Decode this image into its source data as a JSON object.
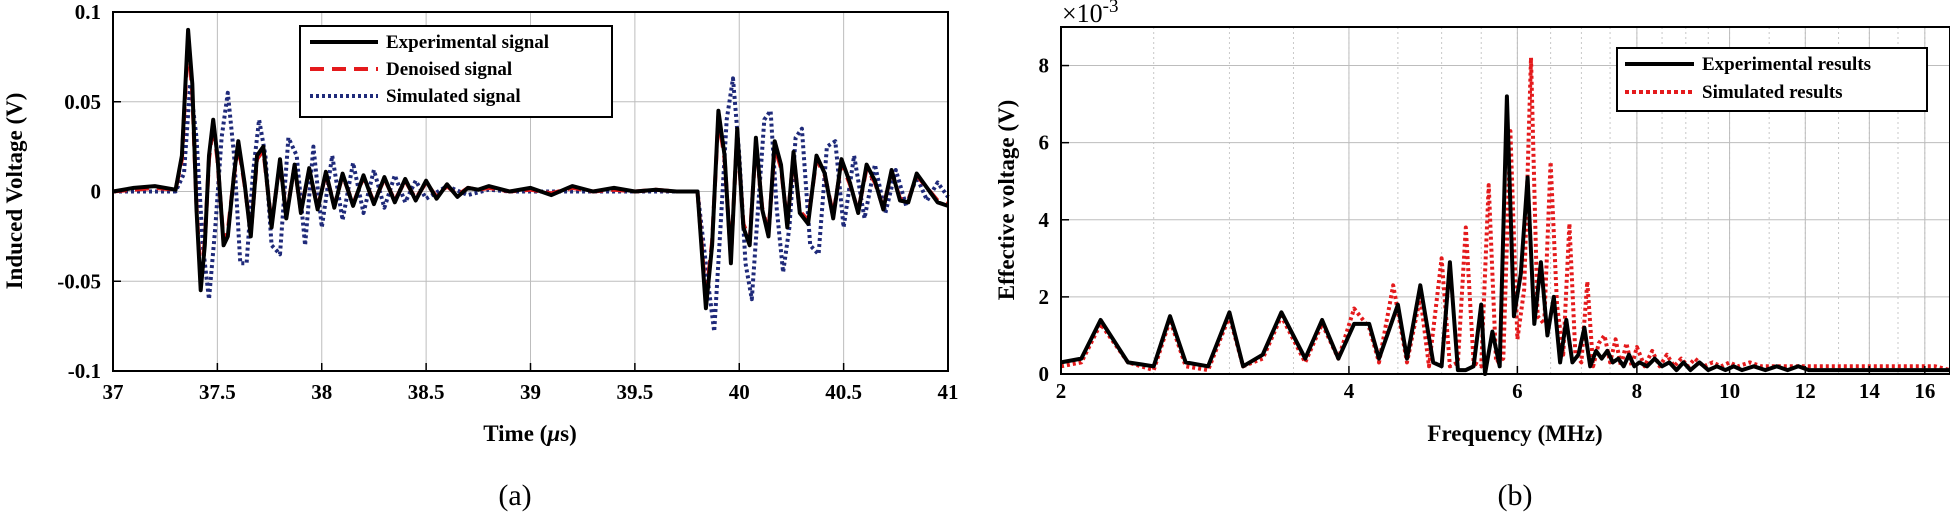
{
  "chart_data": [
    {
      "type": "line",
      "caption": "(a)",
      "xlabel_text": "Time (",
      "xlabel_mu": "μ",
      "xlabel_tail": "s)",
      "ylabel": "Induced Voltage (V)",
      "xlim": [
        37,
        41
      ],
      "ylim": [
        -0.1,
        0.1
      ],
      "xticks": [
        37,
        37.5,
        38,
        38.5,
        39,
        39.5,
        40,
        40.5,
        41
      ],
      "xtick_labels": [
        "37",
        "37.5",
        "38",
        "38.5",
        "39",
        "39.5",
        "40",
        "40.5",
        "41"
      ],
      "yticks": [
        -0.1,
        -0.05,
        0,
        0.05,
        0.1
      ],
      "ytick_labels": [
        "-0.1",
        "-0.05",
        "0",
        "0.05",
        "0.1"
      ],
      "grid": true,
      "legend_position": "top-right",
      "series": [
        {
          "name": "Experimental signal",
          "color": "#000000",
          "style": "solid",
          "x": [
            37.0,
            37.1,
            37.2,
            37.3,
            37.33,
            37.36,
            37.38,
            37.4,
            37.42,
            37.44,
            37.46,
            37.48,
            37.5,
            37.53,
            37.55,
            37.58,
            37.6,
            37.63,
            37.66,
            37.69,
            37.72,
            37.76,
            37.8,
            37.83,
            37.87,
            37.9,
            37.94,
            37.98,
            38.02,
            38.06,
            38.1,
            38.15,
            38.2,
            38.25,
            38.3,
            38.35,
            38.4,
            38.45,
            38.5,
            38.55,
            38.6,
            38.65,
            38.7,
            38.75,
            38.8,
            38.9,
            39.0,
            39.1,
            39.2,
            39.3,
            39.4,
            39.5,
            39.6,
            39.7,
            39.8,
            39.84,
            39.87,
            39.9,
            39.93,
            39.96,
            39.99,
            40.02,
            40.05,
            40.08,
            40.11,
            40.14,
            40.17,
            40.2,
            40.23,
            40.26,
            40.29,
            40.33,
            40.37,
            40.41,
            40.45,
            40.49,
            40.53,
            40.57,
            40.61,
            40.65,
            40.69,
            40.73,
            40.77,
            40.81,
            40.85,
            40.9,
            40.95,
            41.0
          ],
          "y": [
            0,
            0.002,
            0.003,
            0.001,
            0.02,
            0.09,
            0.06,
            -0.01,
            -0.055,
            -0.03,
            0.02,
            0.04,
            0.02,
            -0.03,
            -0.025,
            0.01,
            0.028,
            0.005,
            -0.025,
            0.02,
            0.025,
            -0.02,
            0.018,
            -0.015,
            0.015,
            -0.012,
            0.013,
            -0.01,
            0.011,
            -0.009,
            0.01,
            -0.008,
            0.009,
            -0.007,
            0.008,
            -0.006,
            0.007,
            -0.005,
            0.006,
            -0.004,
            0.004,
            -0.003,
            0.002,
            0.001,
            0.003,
            0,
            0.002,
            -0.002,
            0.003,
            0,
            0.002,
            0,
            0.001,
            0,
            0,
            -0.065,
            -0.03,
            0.045,
            0.02,
            -0.04,
            0.035,
            -0.02,
            -0.03,
            0.03,
            -0.01,
            -0.025,
            0.028,
            0.015,
            -0.02,
            0.022,
            -0.012,
            -0.018,
            0.02,
            0.01,
            -0.015,
            0.018,
            0.005,
            -0.012,
            0.015,
            0.006,
            -0.01,
            0.012,
            -0.005,
            -0.006,
            0.01,
            0.002,
            -0.006,
            -0.008
          ]
        },
        {
          "name": "Denoised signal",
          "color": "#e41a1c",
          "style": "dashed",
          "x": [
            37.0,
            37.1,
            37.2,
            37.3,
            37.33,
            37.36,
            37.38,
            37.4,
            37.42,
            37.44,
            37.46,
            37.48,
            37.5,
            37.53,
            37.55,
            37.58,
            37.6,
            37.63,
            37.66,
            37.69,
            37.72,
            37.76,
            37.8,
            37.83,
            37.87,
            37.9,
            37.94,
            37.98,
            38.02,
            38.06,
            38.1,
            38.15,
            38.2,
            38.25,
            38.3,
            38.35,
            38.4,
            38.45,
            38.5,
            38.55,
            38.6,
            38.65,
            38.7,
            38.75,
            38.8,
            38.9,
            39.0,
            39.1,
            39.2,
            39.3,
            39.4,
            39.5,
            39.6,
            39.7,
            39.8,
            39.84,
            39.87,
            39.9,
            39.93,
            39.96,
            39.99,
            40.02,
            40.05,
            40.08,
            40.11,
            40.14,
            40.17,
            40.2,
            40.23,
            40.26,
            40.29,
            40.33,
            40.37,
            40.41,
            40.45,
            40.49,
            40.53,
            40.57,
            40.61,
            40.65,
            40.69,
            40.73,
            40.77,
            40.81,
            40.85,
            40.9,
            40.95,
            41.0
          ],
          "y": [
            0,
            0.001,
            0.002,
            0.001,
            0.018,
            0.085,
            0.055,
            -0.008,
            -0.05,
            -0.028,
            0.018,
            0.037,
            0.018,
            -0.028,
            -0.022,
            0.009,
            0.026,
            0.004,
            -0.023,
            0.018,
            0.023,
            -0.018,
            0.016,
            -0.013,
            0.014,
            -0.011,
            0.012,
            -0.009,
            0.01,
            -0.008,
            0.009,
            -0.007,
            0.008,
            -0.006,
            0.007,
            -0.005,
            0.006,
            -0.004,
            0.005,
            -0.003,
            0.003,
            -0.002,
            0.002,
            0.001,
            0.002,
            0,
            0.001,
            -0.001,
            0.002,
            0,
            0.001,
            0,
            0.001,
            0,
            0,
            -0.06,
            -0.028,
            0.042,
            0.018,
            -0.037,
            0.032,
            -0.018,
            -0.027,
            0.027,
            -0.009,
            -0.023,
            0.025,
            0.013,
            -0.018,
            0.02,
            -0.011,
            -0.016,
            0.018,
            0.009,
            -0.013,
            0.016,
            0.004,
            -0.011,
            0.013,
            0.005,
            -0.009,
            0.011,
            -0.004,
            -0.005,
            0.009,
            0.002,
            -0.005,
            -0.007
          ]
        },
        {
          "name": "Simulated signal",
          "color": "#1f2a7a",
          "style": "dotted",
          "x": [
            37.0,
            37.1,
            37.2,
            37.3,
            37.34,
            37.37,
            37.4,
            37.43,
            37.46,
            37.49,
            37.52,
            37.55,
            37.58,
            37.61,
            37.64,
            37.67,
            37.7,
            37.73,
            37.76,
            37.8,
            37.84,
            37.88,
            37.92,
            37.96,
            38.0,
            38.05,
            38.1,
            38.15,
            38.2,
            38.25,
            38.3,
            38.35,
            38.4,
            38.45,
            38.5,
            38.6,
            38.7,
            38.8,
            38.9,
            39.0,
            39.2,
            39.4,
            39.6,
            39.8,
            39.85,
            39.88,
            39.91,
            39.94,
            39.97,
            40.0,
            40.03,
            40.06,
            40.09,
            40.12,
            40.15,
            40.18,
            40.21,
            40.24,
            40.27,
            40.3,
            40.34,
            40.38,
            40.42,
            40.46,
            40.5,
            40.55,
            40.6,
            40.65,
            40.7,
            40.75,
            40.8,
            40.85,
            40.9,
            40.95,
            41.0
          ],
          "y": [
            0,
            0,
            0,
            0,
            0.01,
            0.06,
            0.03,
            -0.03,
            -0.06,
            -0.02,
            0.03,
            0.055,
            0.02,
            -0.04,
            -0.04,
            0.01,
            0.04,
            0.02,
            -0.03,
            -0.035,
            0.03,
            0.02,
            -0.03,
            0.025,
            -0.02,
            0.02,
            -0.016,
            0.016,
            -0.012,
            0.012,
            -0.009,
            0.009,
            -0.006,
            0.006,
            -0.004,
            0.003,
            -0.002,
            0.001,
            0,
            0,
            0,
            0,
            0,
            0,
            -0.05,
            -0.078,
            -0.02,
            0.04,
            0.063,
            0.02,
            -0.04,
            -0.06,
            -0.01,
            0.04,
            0.045,
            -0.01,
            -0.045,
            -0.02,
            0.03,
            0.035,
            -0.03,
            -0.035,
            0.025,
            0.028,
            -0.02,
            0.02,
            -0.015,
            0.015,
            -0.012,
            0.012,
            -0.008,
            0.008,
            -0.005,
            0.005,
            -0.003
          ]
        }
      ]
    },
    {
      "type": "line",
      "caption": "(b)",
      "xlabel": "Frequency (MHz)",
      "ylabel": "Effective voltage (V)",
      "y_multiplier_base": "×10",
      "y_multiplier_exp": "-3",
      "xscale": "log",
      "xlim": [
        2,
        17
      ],
      "ylim": [
        0,
        9
      ],
      "xticks": [
        2,
        4,
        6,
        8,
        10,
        12,
        14,
        16
      ],
      "xtick_labels": [
        "2",
        "4",
        "6",
        "8",
        "10",
        "12",
        "14",
        "16"
      ],
      "yticks": [
        0,
        2,
        4,
        6,
        8
      ],
      "ytick_labels": [
        "0",
        "2",
        "4",
        "6",
        "8"
      ],
      "grid": true,
      "legend_position": "top-right",
      "series": [
        {
          "name": "Experimental results",
          "color": "#000000",
          "style": "solid",
          "x": [
            2.0,
            2.1,
            2.2,
            2.35,
            2.5,
            2.6,
            2.7,
            2.85,
            3.0,
            3.1,
            3.25,
            3.4,
            3.6,
            3.75,
            3.9,
            4.05,
            4.2,
            4.3,
            4.5,
            4.6,
            4.75,
            4.9,
            5.0,
            5.1,
            5.2,
            5.3,
            5.4,
            5.5,
            5.55,
            5.65,
            5.75,
            5.85,
            5.95,
            6.05,
            6.15,
            6.25,
            6.35,
            6.45,
            6.55,
            6.65,
            6.75,
            6.85,
            6.95,
            7.05,
            7.15,
            7.25,
            7.35,
            7.45,
            7.55,
            7.65,
            7.75,
            7.85,
            7.95,
            8.05,
            8.2,
            8.35,
            8.5,
            8.65,
            8.8,
            8.95,
            9.1,
            9.3,
            9.5,
            9.7,
            9.9,
            10.1,
            10.3,
            10.6,
            10.9,
            11.2,
            11.5,
            11.8,
            12.1,
            12.4,
            12.7,
            13.0,
            13.4,
            13.8,
            14.2,
            14.6,
            15.0,
            15.5,
            16.0,
            16.5,
            17.0
          ],
          "y": [
            0.3,
            0.4,
            1.4,
            0.3,
            0.2,
            1.5,
            0.3,
            0.2,
            1.6,
            0.2,
            0.5,
            1.6,
            0.4,
            1.4,
            0.4,
            1.3,
            1.3,
            0.4,
            1.8,
            0.4,
            2.3,
            0.3,
            0.2,
            2.9,
            0.1,
            0.1,
            0.2,
            1.8,
            0,
            1.1,
            0.2,
            7.2,
            1.5,
            2.6,
            5.1,
            1.3,
            2.9,
            1.0,
            2.0,
            0.3,
            1.4,
            0.3,
            0.5,
            1.2,
            0.2,
            0.6,
            0.4,
            0.6,
            0.3,
            0.4,
            0.2,
            0.5,
            0.2,
            0.3,
            0.2,
            0.4,
            0.2,
            0.3,
            0.1,
            0.3,
            0.1,
            0.3,
            0.1,
            0.2,
            0.1,
            0.2,
            0.1,
            0.2,
            0.1,
            0.2,
            0.1,
            0.2,
            0.1,
            0.1,
            0.1,
            0.1,
            0.1,
            0.1,
            0.1,
            0.1,
            0.1,
            0.1,
            0.1,
            0.1,
            0.1
          ]
        },
        {
          "name": "Simulated results",
          "color": "#e41a1c",
          "style": "dotted",
          "x": [
            2.0,
            2.1,
            2.2,
            2.35,
            2.5,
            2.6,
            2.7,
            2.85,
            3.0,
            3.1,
            3.25,
            3.4,
            3.6,
            3.75,
            3.9,
            4.05,
            4.2,
            4.3,
            4.45,
            4.6,
            4.75,
            4.85,
            5.0,
            5.1,
            5.2,
            5.3,
            5.4,
            5.5,
            5.6,
            5.7,
            5.8,
            5.9,
            6.0,
            6.1,
            6.2,
            6.3,
            6.4,
            6.5,
            6.6,
            6.7,
            6.8,
            6.9,
            7.0,
            7.1,
            7.2,
            7.3,
            7.4,
            7.5,
            7.6,
            7.7,
            7.8,
            7.9,
            8.0,
            8.15,
            8.3,
            8.45,
            8.6,
            8.75,
            8.9,
            9.05,
            9.2,
            9.4,
            9.6,
            9.8,
            10.0,
            10.2,
            10.5,
            10.8,
            11.1,
            11.4,
            11.7,
            12.0,
            12.3,
            12.6,
            12.9,
            13.3,
            13.7,
            14.1,
            14.5,
            14.9,
            15.4,
            15.9,
            16.4,
            17.0
          ],
          "y": [
            0.2,
            0.3,
            1.3,
            0.3,
            0.1,
            1.4,
            0.2,
            0.1,
            1.5,
            0.2,
            0.4,
            1.5,
            0.3,
            1.3,
            0.4,
            1.7,
            1.2,
            0.3,
            2.3,
            0.3,
            2.0,
            0.2,
            3.0,
            0.2,
            0.3,
            3.8,
            0.3,
            0.2,
            4.9,
            0.3,
            0.4,
            6.3,
            0.9,
            2.2,
            8.2,
            1.5,
            1.3,
            5.5,
            1.8,
            0.5,
            3.9,
            0.5,
            0.3,
            2.4,
            0.2,
            0.8,
            1.0,
            0.3,
            0.9,
            0.2,
            0.8,
            0.2,
            0.7,
            0.2,
            0.6,
            0.2,
            0.5,
            0.2,
            0.4,
            0.2,
            0.4,
            0.2,
            0.3,
            0.2,
            0.3,
            0.2,
            0.3,
            0.2,
            0.2,
            0.2,
            0.2,
            0.2,
            0.2,
            0.2,
            0.2,
            0.2,
            0.2,
            0.2,
            0.2,
            0.2,
            0.2,
            0.2,
            0.2,
            0.1
          ]
        }
      ]
    }
  ]
}
